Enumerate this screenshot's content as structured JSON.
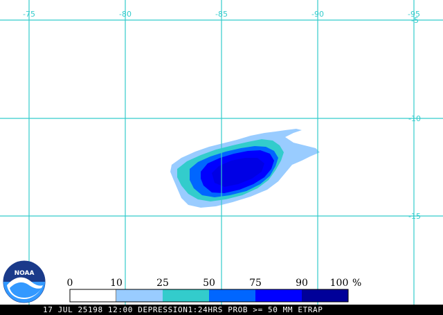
{
  "map": {
    "longitude_labels": [
      "-75",
      "-80",
      "-85",
      "-90",
      "-95"
    ],
    "latitude_labels": [
      "-5",
      "-10",
      "-15"
    ],
    "grid_color": "#33cccc"
  },
  "probability_field": {
    "description_levels_percent": [
      10,
      25,
      50,
      75,
      90
    ],
    "level_colors": [
      "#99ccff",
      "#33cccc",
      "#0066ff",
      "#0000ff",
      "#000099"
    ]
  },
  "legend": {
    "labels": [
      "0",
      "10",
      "25",
      "50",
      "75",
      "90",
      "100"
    ],
    "unit": "%",
    "colors": [
      "#ffffff",
      "#99ccff",
      "#33cccc",
      "#0066ff",
      "#0000ff",
      "#000099"
    ]
  },
  "logo": {
    "text": "NOAA"
  },
  "caption": {
    "text": "17 JUL 25198 12:00 DEPRESSION1:24HRS PROB >= 50 MM ETRAP"
  }
}
